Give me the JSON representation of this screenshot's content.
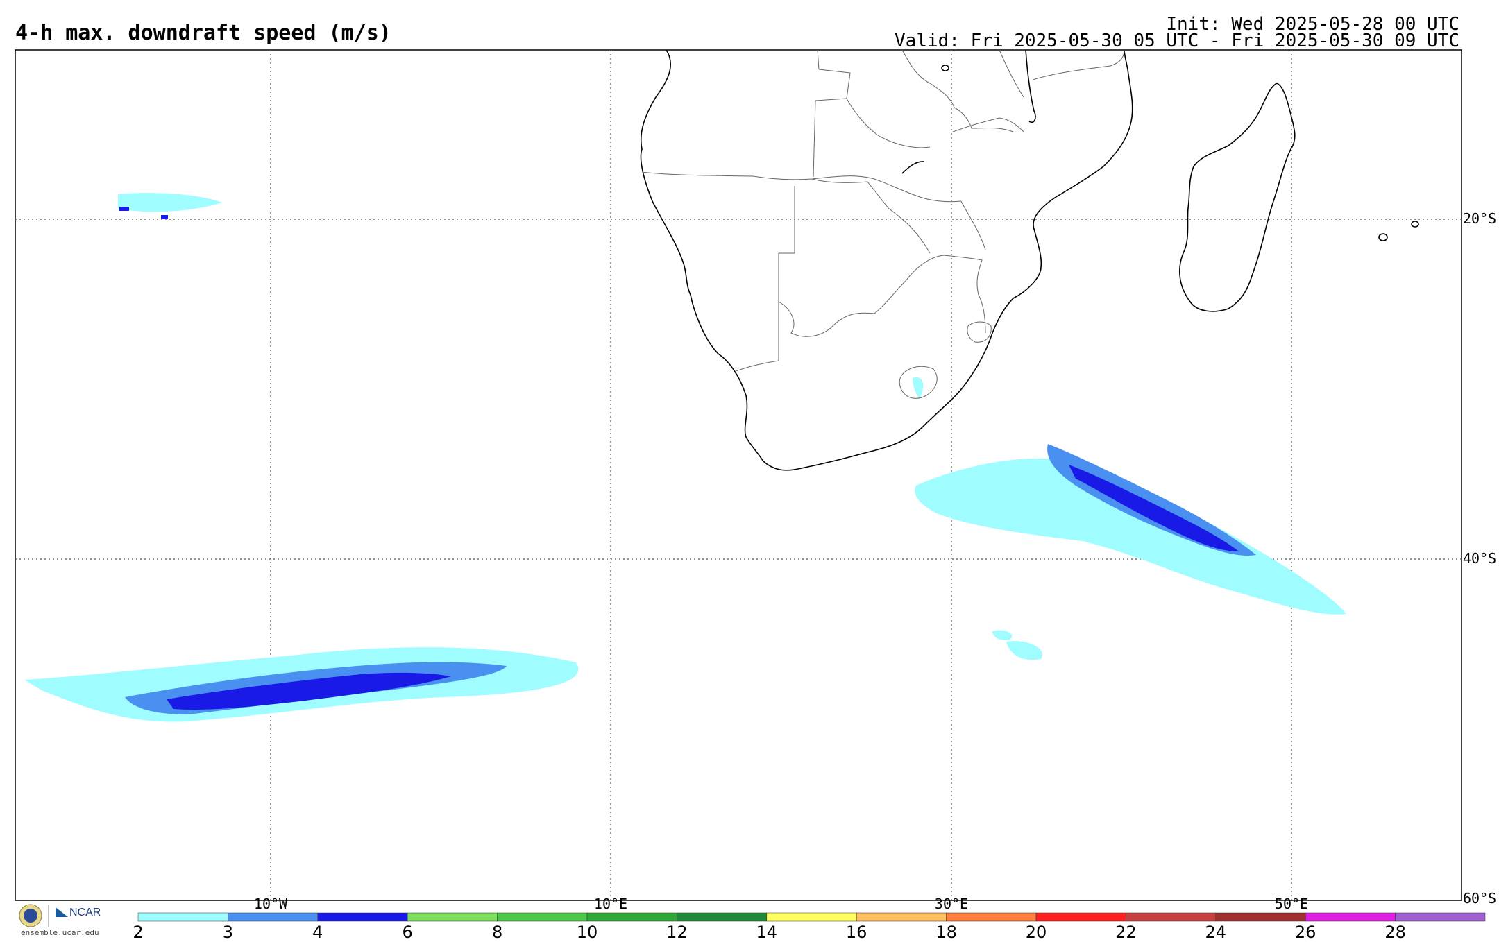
{
  "header": {
    "title": "4-h max. downdraft speed (m/s)",
    "init": "Init: Wed 2025-05-28 00 UTC",
    "valid": "Valid: Fri 2025-05-30 05 UTC - Fri 2025-05-30 09 UTC"
  },
  "map": {
    "region": "Southern Africa and South Atlantic / Indian Ocean",
    "lon_labels": [
      "10°W",
      "10°E",
      "30°E",
      "50°E"
    ],
    "lat_labels": [
      "20°S",
      "40°S",
      "60°S"
    ],
    "land_outline_color": "#000000",
    "border_color": "#555555",
    "grid_style": "dotted"
  },
  "colorbar": {
    "ticks": [
      "2",
      "3",
      "4",
      "6",
      "8",
      "10",
      "12",
      "14",
      "16",
      "18",
      "20",
      "22",
      "24",
      "26",
      "28"
    ],
    "colors": [
      "#9ffcff",
      "#4a90f0",
      "#1a1ae6",
      "#7ee060",
      "#4ec84a",
      "#30a838",
      "#208a38",
      "#ffff60",
      "#ffc060",
      "#ff8040",
      "#ff2020",
      "#c84040",
      "#a03030",
      "#e020e0",
      "#a060d0"
    ]
  },
  "logo": {
    "org": "NCAR",
    "url": "ensemble.ucar.edu"
  }
}
